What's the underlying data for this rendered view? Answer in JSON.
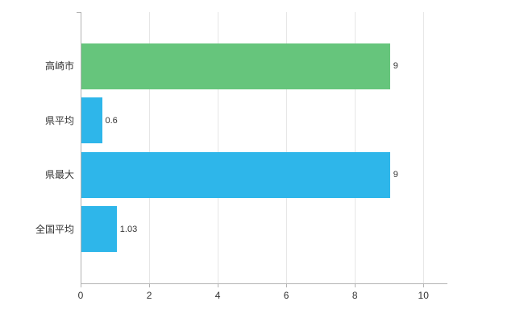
{
  "chart_data": {
    "type": "bar",
    "orientation": "horizontal",
    "title": "",
    "xlabel": "",
    "ylabel": "",
    "categories": [
      "高崎市",
      "県平均",
      "県最大",
      "全国平均"
    ],
    "values": [
      9,
      0.6,
      9,
      1.03
    ],
    "value_labels": [
      "9",
      "0.6",
      "9",
      "1.03"
    ],
    "bar_colors": [
      "#66c57c",
      "#2eb6ea",
      "#2eb6ea",
      "#2eb6ea"
    ],
    "xlim": [
      0,
      10.7
    ],
    "x_ticks": [
      0,
      2,
      4,
      6,
      8,
      10
    ],
    "x_tick_labels": [
      "0",
      "2",
      "4",
      "6",
      "8",
      "10"
    ],
    "grid": true,
    "legend": false,
    "background_color": "#ffffff",
    "axis_color": "#b3b3b3",
    "gridline_color": "#e6e6e6",
    "text_color": "#333333"
  }
}
